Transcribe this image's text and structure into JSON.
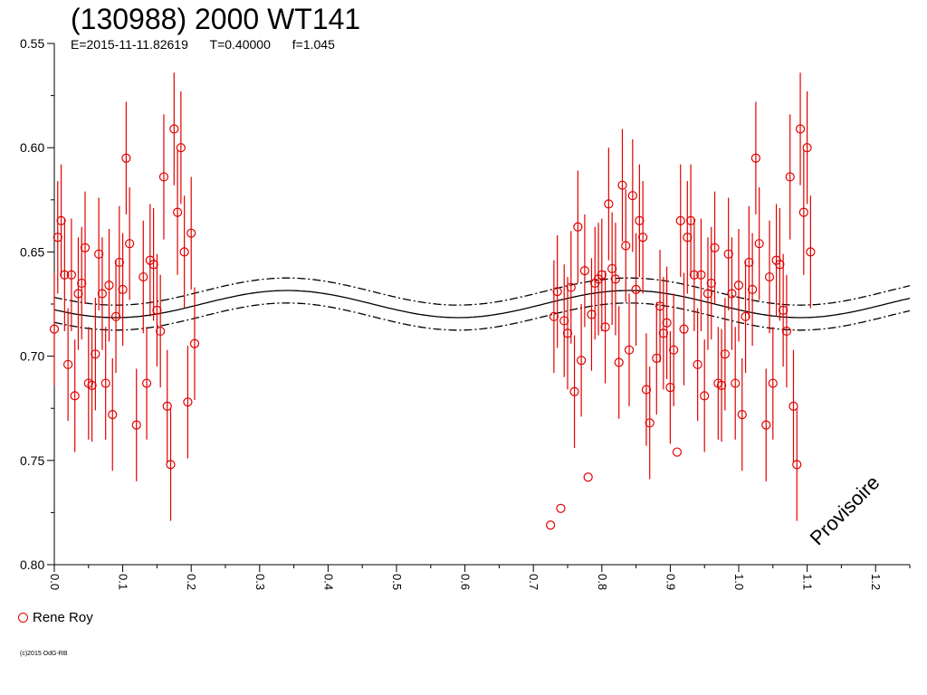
{
  "header": {
    "title": "(130988) 2000 WT141",
    "epoch": "E=2015-11-11.82619",
    "period": "T=0.40000",
    "factor": "f=1.045"
  },
  "legend": {
    "label": "Rene Roy",
    "color": "#e00000"
  },
  "copyright": "(c)2015 OdG-RB",
  "watermark": "Provisoire",
  "chart_data": {
    "type": "scatter",
    "xlim": [
      0.0,
      1.25
    ],
    "ylim": [
      0.8,
      0.55
    ],
    "y_inverted": true,
    "xticks": [
      0.0,
      0.1,
      0.2,
      0.3,
      0.4,
      0.5,
      0.6,
      0.7,
      0.8,
      0.9,
      1.0,
      1.1,
      1.2
    ],
    "xtick_labels": [
      "0.0",
      "0.1",
      "0.2",
      "0.3",
      "0.4",
      "0.5",
      "0.6",
      "0.7",
      "0.8",
      "0.9",
      "1.0",
      "1.1",
      "1.2"
    ],
    "yticks": [
      0.55,
      0.6,
      0.65,
      0.7,
      0.75,
      0.8
    ],
    "ytick_labels": [
      "0.55",
      "0.60",
      "0.65",
      "0.70",
      "0.75",
      "0.80"
    ],
    "series": [
      {
        "name": "Rene Roy",
        "color": "#e00000",
        "points": [
          [
            0.0,
            0.687,
            0.027
          ],
          [
            0.005,
            0.643,
            0.027
          ],
          [
            0.01,
            0.635,
            0.027
          ],
          [
            0.015,
            0.661,
            0.027
          ],
          [
            0.02,
            0.704,
            0.027
          ],
          [
            0.025,
            0.661,
            0.027
          ],
          [
            0.03,
            0.719,
            0.027
          ],
          [
            0.035,
            0.67,
            0.027
          ],
          [
            0.04,
            0.665,
            0.027
          ],
          [
            0.045,
            0.648,
            0.027
          ],
          [
            0.05,
            0.713,
            0.027
          ],
          [
            0.055,
            0.714,
            0.027
          ],
          [
            0.06,
            0.699,
            0.027
          ],
          [
            0.065,
            0.651,
            0.027
          ],
          [
            0.07,
            0.67,
            0.027
          ],
          [
            0.075,
            0.713,
            0.027
          ],
          [
            0.08,
            0.666,
            0.027
          ],
          [
            0.085,
            0.728,
            0.027
          ],
          [
            0.09,
            0.681,
            0.027
          ],
          [
            0.095,
            0.655,
            0.027
          ],
          [
            0.1,
            0.668,
            0.027
          ],
          [
            0.105,
            0.605,
            0.027
          ],
          [
            0.11,
            0.646,
            0.027
          ],
          [
            0.12,
            0.733,
            0.027
          ],
          [
            0.13,
            0.662,
            0.027
          ],
          [
            0.135,
            0.713,
            0.027
          ],
          [
            0.14,
            0.654,
            0.027
          ],
          [
            0.145,
            0.656,
            0.027
          ],
          [
            0.15,
            0.678,
            0.027
          ],
          [
            0.155,
            0.688,
            0.027
          ],
          [
            0.16,
            0.614,
            0.03
          ],
          [
            0.165,
            0.724,
            0.027
          ],
          [
            0.17,
            0.752,
            0.027
          ],
          [
            0.175,
            0.591,
            0.027
          ],
          [
            0.18,
            0.631,
            0.03
          ],
          [
            0.185,
            0.6,
            0.027
          ],
          [
            0.19,
            0.65,
            0.027
          ],
          [
            0.195,
            0.722,
            0.027
          ],
          [
            0.2,
            0.641,
            0.027
          ],
          [
            0.205,
            0.694,
            0.027
          ],
          [
            0.725,
            0.781,
            0.0
          ],
          [
            0.73,
            0.681,
            0.027
          ],
          [
            0.735,
            0.669,
            0.027
          ],
          [
            0.74,
            0.773,
            0.0
          ],
          [
            0.745,
            0.683,
            0.027
          ],
          [
            0.75,
            0.689,
            0.027
          ],
          [
            0.755,
            0.667,
            0.027
          ],
          [
            0.76,
            0.717,
            0.027
          ],
          [
            0.765,
            0.638,
            0.027
          ],
          [
            0.77,
            0.702,
            0.027
          ],
          [
            0.775,
            0.659,
            0.027
          ],
          [
            0.78,
            0.758,
            0.0
          ],
          [
            0.785,
            0.68,
            0.027
          ],
          [
            0.79,
            0.665,
            0.027
          ],
          [
            0.795,
            0.663,
            0.027
          ],
          [
            0.8,
            0.661,
            0.027
          ],
          [
            0.805,
            0.686,
            0.027
          ],
          [
            0.81,
            0.627,
            0.027
          ],
          [
            0.815,
            0.658,
            0.027
          ],
          [
            0.82,
            0.663,
            0.027
          ],
          [
            0.825,
            0.703,
            0.027
          ],
          [
            0.83,
            0.618,
            0.027
          ],
          [
            0.835,
            0.647,
            0.027
          ],
          [
            0.84,
            0.697,
            0.027
          ],
          [
            0.845,
            0.623,
            0.027
          ],
          [
            0.85,
            0.668,
            0.027
          ],
          [
            0.855,
            0.635,
            0.027
          ],
          [
            0.86,
            0.643,
            0.027
          ],
          [
            0.865,
            0.716,
            0.027
          ],
          [
            0.87,
            0.732,
            0.027
          ],
          [
            0.88,
            0.701,
            0.027
          ],
          [
            0.885,
            0.676,
            0.027
          ],
          [
            0.89,
            0.689,
            0.027
          ],
          [
            0.895,
            0.684,
            0.027
          ],
          [
            0.9,
            0.715,
            0.027
          ],
          [
            0.905,
            0.697,
            0.027
          ],
          [
            0.91,
            0.746,
            0.0
          ],
          [
            0.915,
            0.635,
            0.027
          ],
          [
            0.92,
            0.687,
            0.027
          ],
          [
            0.925,
            0.643,
            0.027
          ],
          [
            0.93,
            0.635,
            0.027
          ],
          [
            0.935,
            0.661,
            0.027
          ],
          [
            0.94,
            0.704,
            0.027
          ],
          [
            0.945,
            0.661,
            0.027
          ],
          [
            0.95,
            0.719,
            0.027
          ],
          [
            0.955,
            0.67,
            0.027
          ],
          [
            0.96,
            0.665,
            0.027
          ],
          [
            0.965,
            0.648,
            0.027
          ],
          [
            0.97,
            0.713,
            0.027
          ],
          [
            0.975,
            0.714,
            0.027
          ],
          [
            0.98,
            0.699,
            0.027
          ],
          [
            0.985,
            0.651,
            0.027
          ],
          [
            0.99,
            0.67,
            0.027
          ],
          [
            0.995,
            0.713,
            0.027
          ],
          [
            1.0,
            0.666,
            0.027
          ],
          [
            1.005,
            0.728,
            0.027
          ],
          [
            1.01,
            0.681,
            0.027
          ],
          [
            1.015,
            0.655,
            0.027
          ],
          [
            1.02,
            0.668,
            0.027
          ],
          [
            1.025,
            0.605,
            0.027
          ],
          [
            1.03,
            0.646,
            0.027
          ],
          [
            1.04,
            0.733,
            0.027
          ],
          [
            1.045,
            0.662,
            0.027
          ],
          [
            1.05,
            0.713,
            0.027
          ],
          [
            1.055,
            0.654,
            0.027
          ],
          [
            1.06,
            0.656,
            0.027
          ],
          [
            1.065,
            0.678,
            0.027
          ],
          [
            1.07,
            0.688,
            0.027
          ],
          [
            1.075,
            0.614,
            0.03
          ],
          [
            1.08,
            0.724,
            0.027
          ],
          [
            1.085,
            0.752,
            0.027
          ],
          [
            1.09,
            0.591,
            0.027
          ],
          [
            1.095,
            0.631,
            0.03
          ],
          [
            1.1,
            0.6,
            0.027
          ],
          [
            1.105,
            0.65,
            0.027
          ]
        ]
      }
    ],
    "fit_curve": {
      "mean": 0.675,
      "amplitude": 0.0065,
      "band": 0.006,
      "phase_of_brightest": 0.34
    }
  }
}
